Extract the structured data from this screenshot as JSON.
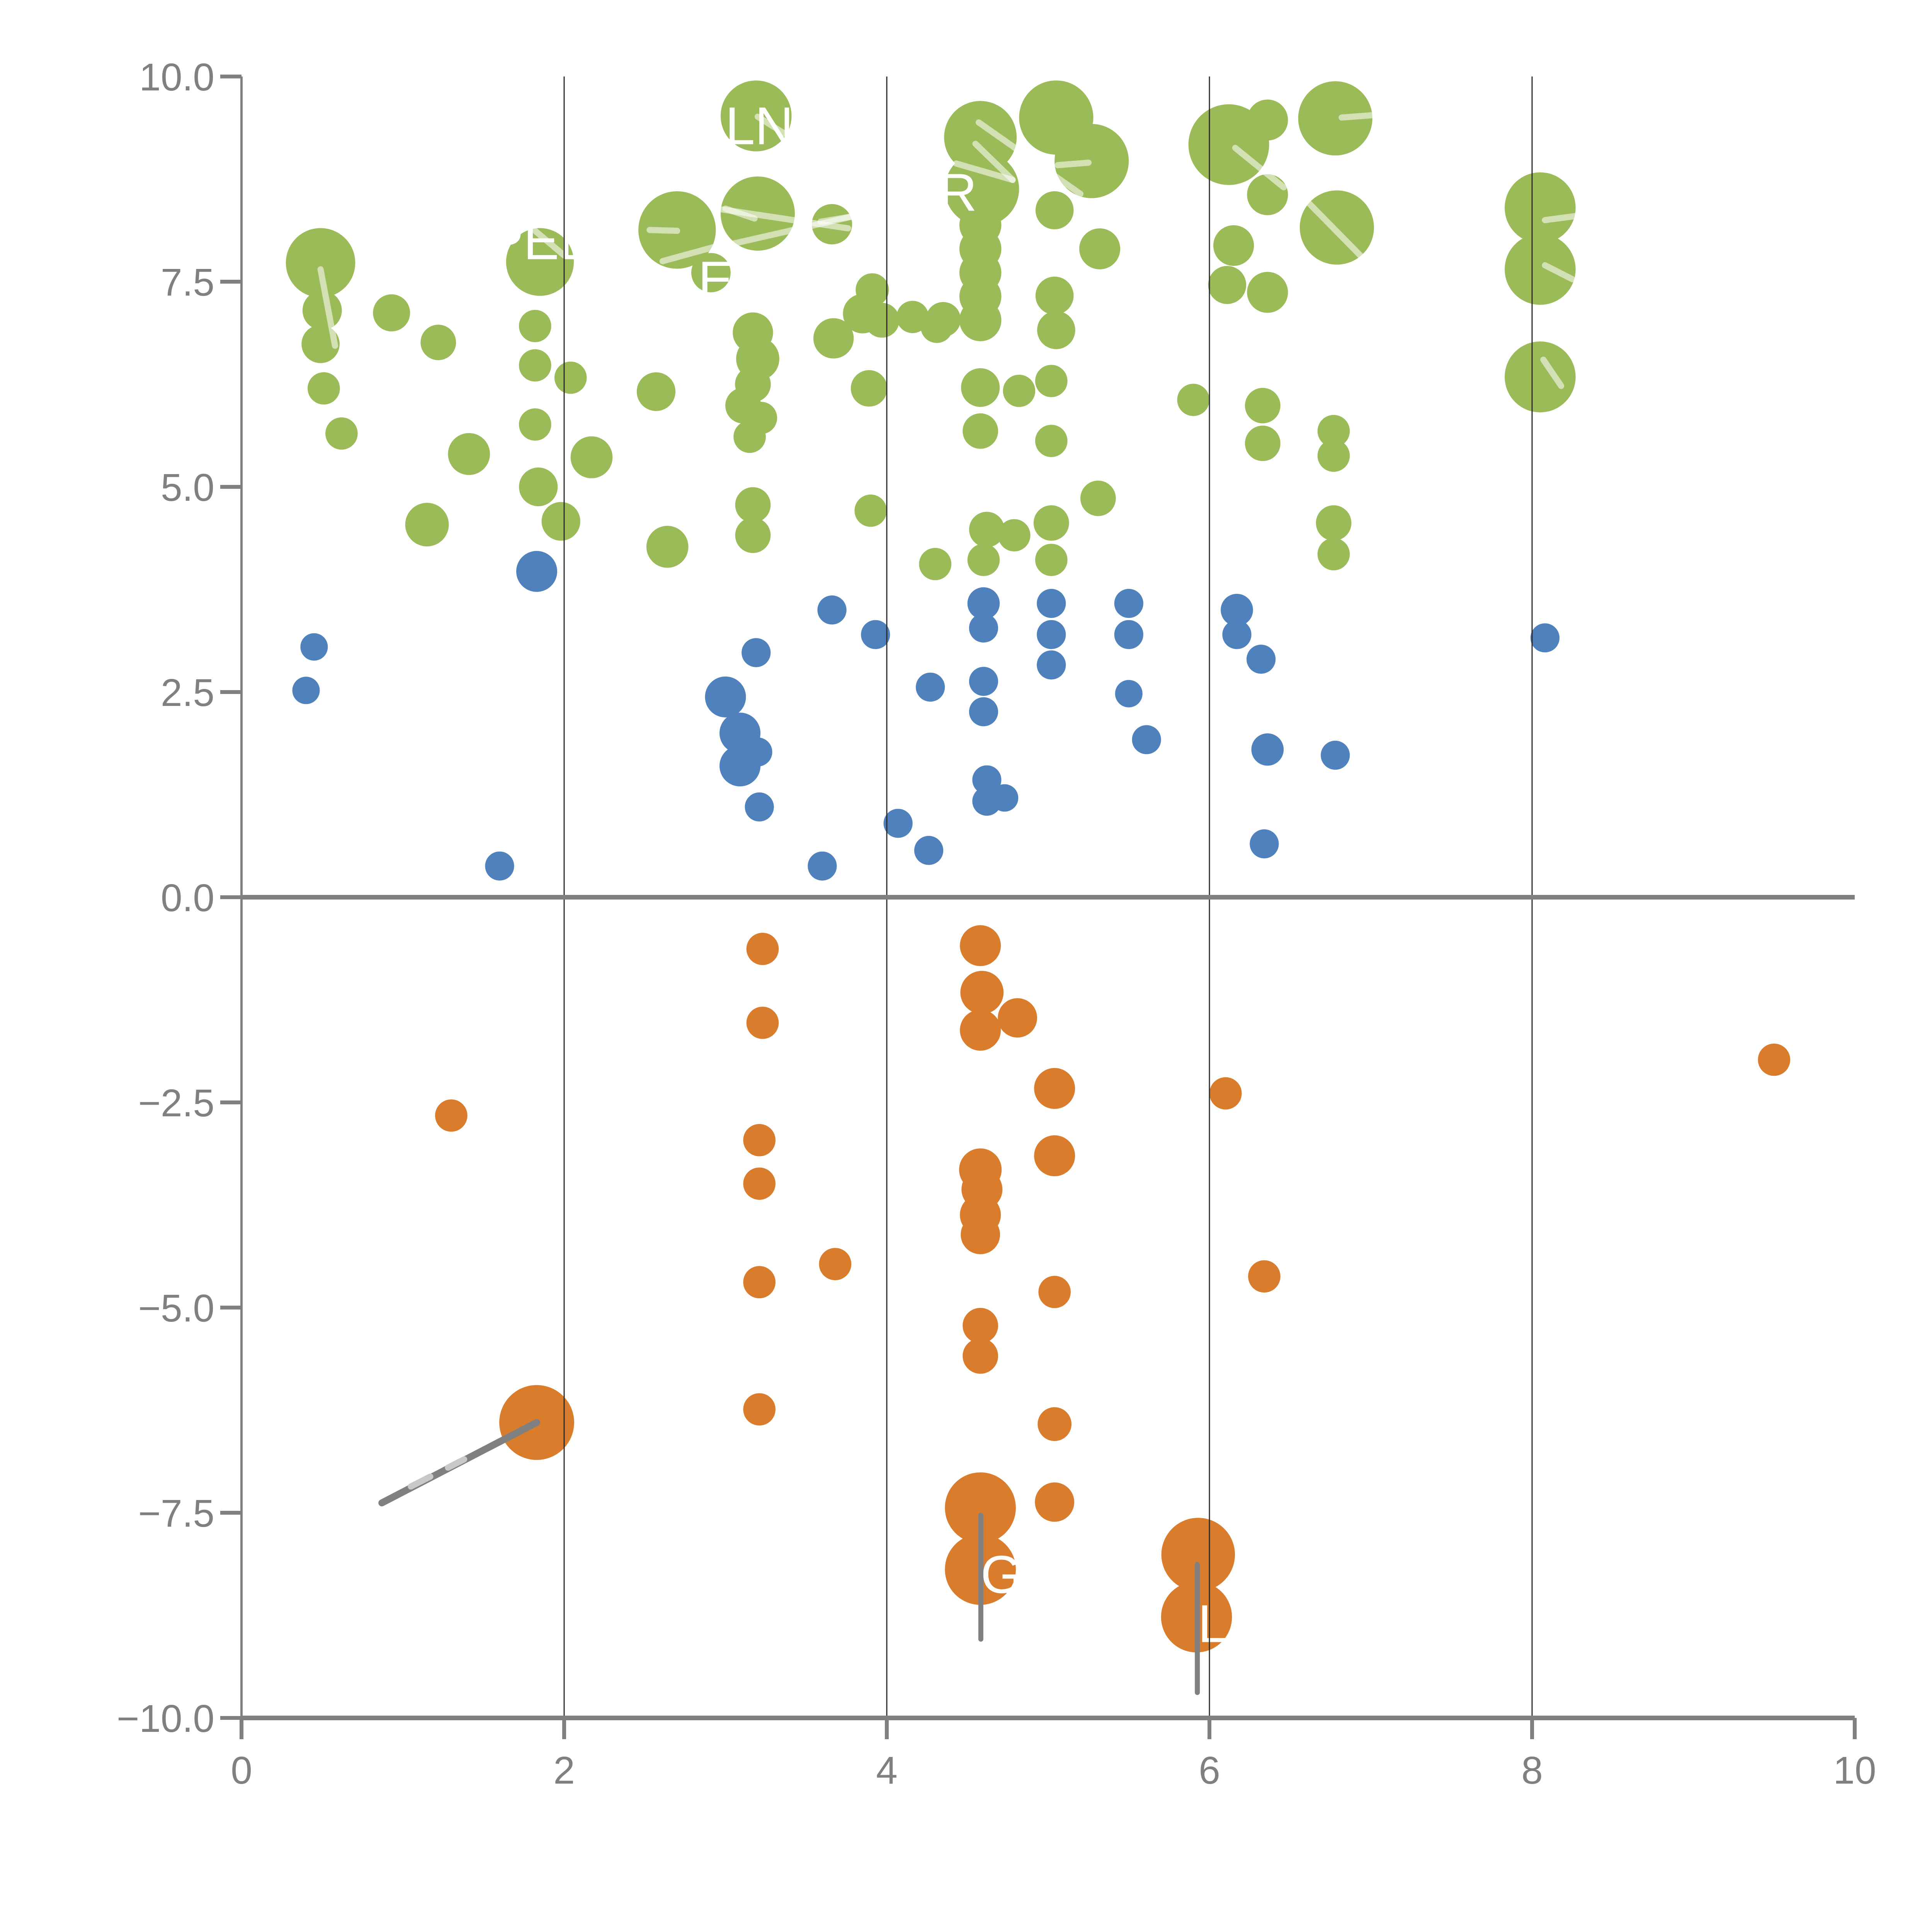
{
  "chart_data": {
    "type": "scatter",
    "title": "",
    "xlabel": "",
    "ylabel": "",
    "xlim": [
      0,
      10
    ],
    "ylim": [
      -10,
      10
    ],
    "grid_x_values": [
      2,
      4,
      6,
      8
    ],
    "zero_line_y": 0,
    "x_ticks": {
      "values": [
        0,
        2,
        4,
        6,
        8,
        10
      ],
      "labels": [
        "0",
        "2",
        "4",
        "6",
        "8",
        "10"
      ]
    },
    "y_ticks": {
      "values": [
        10,
        7.5,
        5,
        2.5,
        0,
        -2.5,
        -5,
        -7.5,
        -10
      ],
      "labels": [
        "10.0",
        "7.5",
        "5.0",
        "2.5",
        "0.0",
        "−2.5",
        "−5.0",
        "−7.5",
        "−10.0"
      ]
    },
    "colors": {
      "green": "#9BBB59",
      "blue": "#4F81BD",
      "orange": "#D97D2D",
      "axis": "#808080",
      "gridline": "#2b2b2b",
      "bubble_label": "#FFFFFF",
      "tick_label": "#808080",
      "leader_light": "rgba(255,255,255,0.55)",
      "leader_gray": "#808080",
      "leader_gray_light": "#C8C8C8"
    },
    "series": [
      {
        "name": "green",
        "color": "#9BBB59",
        "points": [
          [
            3.19,
            9.52,
            0.22
          ],
          [
            4.58,
            9.26,
            0.225
          ],
          [
            4.59,
            8.63,
            0.23
          ],
          [
            5.05,
            9.5,
            0.23
          ],
          [
            5.27,
            8.97,
            0.23
          ],
          [
            6.12,
            9.17,
            0.25
          ],
          [
            6.36,
            9.47,
            0.127
          ],
          [
            6.78,
            9.49,
            0.23
          ],
          [
            6.79,
            8.16,
            0.23
          ],
          [
            8.05,
            8.4,
            0.22
          ],
          [
            8.05,
            7.65,
            0.22
          ],
          [
            8.05,
            6.34,
            0.22
          ],
          [
            2.7,
            8.13,
            0.24
          ],
          [
            3.2,
            8.33,
            0.23
          ],
          [
            0.49,
            7.73,
            0.215
          ],
          [
            1.85,
            7.74,
            0.21
          ],
          [
            3.66,
            8.2,
            0.125
          ],
          [
            6.36,
            8.56,
            0.127
          ],
          [
            2.91,
            7.61,
            0.122
          ],
          [
            5.04,
            8.37,
            0.118
          ],
          [
            5.32,
            7.9,
            0.127
          ],
          [
            6.15,
            7.94,
            0.126
          ],
          [
            6.11,
            7.46,
            0.118
          ],
          [
            6.36,
            7.37,
            0.127
          ],
          [
            5.04,
            7.33,
            0.118
          ],
          [
            5.05,
            6.91,
            0.118
          ],
          [
            4.35,
            7.04,
            0.108
          ],
          [
            0.5,
            7.15,
            0.122
          ],
          [
            0.49,
            6.74,
            0.118
          ],
          [
            0.93,
            7.12,
            0.115
          ],
          [
            1.22,
            6.76,
            0.11
          ],
          [
            1.82,
            6.96,
            0.1
          ],
          [
            3.91,
            7.4,
            0.103
          ],
          [
            3.85,
            7.11,
            0.122
          ],
          [
            3.97,
            7.03,
            0.108
          ],
          [
            4.16,
            7.07,
            0.1
          ],
          [
            4.31,
            6.95,
            0.1
          ],
          [
            4.58,
            8.19,
            0.13
          ],
          [
            4.58,
            7.9,
            0.13
          ],
          [
            4.58,
            7.61,
            0.13
          ],
          [
            4.58,
            7.32,
            0.13
          ],
          [
            4.58,
            7.03,
            0.13
          ],
          [
            3.17,
            6.88,
            0.125
          ],
          [
            3.2,
            6.56,
            0.134
          ],
          [
            3.17,
            6.25,
            0.111
          ],
          [
            3.11,
            5.99,
            0.111
          ],
          [
            3.67,
            6.81,
            0.125
          ],
          [
            3.89,
            6.2,
            0.113
          ],
          [
            2.57,
            6.16,
            0.12
          ],
          [
            0.51,
            6.2,
            0.1
          ],
          [
            1.82,
            6.48,
            0.1
          ],
          [
            2.04,
            6.33,
            0.1
          ],
          [
            4.58,
            6.21,
            0.12
          ],
          [
            4.82,
            6.17,
            0.1
          ],
          [
            5.02,
            6.29,
            0.1
          ],
          [
            5.9,
            6.06,
            0.1
          ],
          [
            6.33,
            5.99,
            0.11
          ],
          [
            6.33,
            5.53,
            0.11
          ],
          [
            0.62,
            5.65,
            0.1
          ],
          [
            1.41,
            5.4,
            0.13
          ],
          [
            1.15,
            4.54,
            0.135
          ],
          [
            1.84,
            5.0,
            0.12
          ],
          [
            1.98,
            4.58,
            0.12
          ],
          [
            2.17,
            5.36,
            0.13
          ],
          [
            2.64,
            4.27,
            0.13
          ],
          [
            1.82,
            5.76,
            0.1
          ],
          [
            3.15,
            5.61,
            0.1
          ],
          [
            4.58,
            5.68,
            0.11
          ],
          [
            5.02,
            5.56,
            0.1
          ],
          [
            6.77,
            5.68,
            0.1
          ],
          [
            6.77,
            5.38,
            0.1
          ],
          [
            3.22,
            5.84,
            0.1
          ],
          [
            3.17,
            4.78,
            0.11
          ],
          [
            3.17,
            4.41,
            0.11
          ],
          [
            3.9,
            4.71,
            0.1
          ],
          [
            5.02,
            4.56,
            0.11
          ],
          [
            4.62,
            4.48,
            0.11
          ],
          [
            4.79,
            4.41,
            0.1
          ],
          [
            6.77,
            4.56,
            0.11
          ],
          [
            6.77,
            4.18,
            0.1
          ],
          [
            4.3,
            4.06,
            0.1
          ],
          [
            4.6,
            4.11,
            0.1
          ],
          [
            5.31,
            4.86,
            0.11
          ],
          [
            5.02,
            4.11,
            0.1
          ]
        ]
      },
      {
        "name": "blue",
        "color": "#4F81BD",
        "points": [
          [
            1.83,
            3.97,
            0.127
          ],
          [
            0.45,
            3.05,
            0.085
          ],
          [
            0.4,
            2.52,
            0.085
          ],
          [
            3.66,
            3.5,
            0.09
          ],
          [
            3.93,
            3.2,
            0.09
          ],
          [
            4.6,
            3.58,
            0.1
          ],
          [
            4.6,
            3.28,
            0.09
          ],
          [
            5.02,
            3.58,
            0.09
          ],
          [
            5.02,
            3.2,
            0.09
          ],
          [
            5.5,
            3.58,
            0.09
          ],
          [
            5.5,
            3.2,
            0.09
          ],
          [
            6.17,
            3.5,
            0.1
          ],
          [
            6.17,
            3.2,
            0.09
          ],
          [
            6.32,
            2.9,
            0.09
          ],
          [
            8.08,
            3.16,
            0.09
          ],
          [
            3.19,
            2.98,
            0.09
          ],
          [
            3.0,
            2.44,
            0.127
          ],
          [
            4.27,
            2.56,
            0.09
          ],
          [
            4.6,
            2.63,
            0.09
          ],
          [
            5.02,
            2.83,
            0.09
          ],
          [
            5.5,
            2.48,
            0.085
          ],
          [
            3.09,
            2.0,
            0.127
          ],
          [
            3.2,
            1.77,
            0.09
          ],
          [
            3.09,
            1.6,
            0.127
          ],
          [
            4.6,
            2.26,
            0.09
          ],
          [
            5.61,
            1.92,
            0.09
          ],
          [
            6.36,
            1.8,
            0.1
          ],
          [
            6.78,
            1.73,
            0.09
          ],
          [
            3.21,
            1.1,
            0.09
          ],
          [
            4.62,
            1.43,
            0.09
          ],
          [
            4.62,
            1.17,
            0.09
          ],
          [
            4.73,
            1.21,
            0.085
          ],
          [
            4.07,
            0.9,
            0.09
          ],
          [
            4.26,
            0.57,
            0.09
          ],
          [
            3.6,
            0.38,
            0.09
          ],
          [
            1.6,
            0.38,
            0.09
          ],
          [
            6.34,
            0.65,
            0.09
          ]
        ]
      },
      {
        "name": "orange",
        "color": "#D97D2D",
        "points": [
          [
            4.58,
            -0.59,
            0.127
          ],
          [
            4.59,
            -1.16,
            0.134
          ],
          [
            4.58,
            -1.62,
            0.127
          ],
          [
            4.81,
            -1.47,
            0.122
          ],
          [
            3.23,
            -0.63,
            0.1
          ],
          [
            3.23,
            -1.53,
            0.1
          ],
          [
            9.5,
            -1.98,
            0.1
          ],
          [
            5.04,
            -2.33,
            0.127
          ],
          [
            6.1,
            -2.39,
            0.1
          ],
          [
            1.3,
            -2.66,
            0.1
          ],
          [
            3.21,
            -2.96,
            0.1
          ],
          [
            5.04,
            -3.15,
            0.127
          ],
          [
            4.58,
            -3.32,
            0.132
          ],
          [
            4.59,
            -3.56,
            0.127
          ],
          [
            4.58,
            -3.87,
            0.127
          ],
          [
            4.58,
            -4.11,
            0.122
          ],
          [
            3.21,
            -3.49,
            0.1
          ],
          [
            3.68,
            -4.47,
            0.1
          ],
          [
            3.21,
            -4.69,
            0.1
          ],
          [
            6.34,
            -4.62,
            0.1
          ],
          [
            5.04,
            -4.81,
            0.1
          ],
          [
            4.58,
            -5.22,
            0.11
          ],
          [
            4.58,
            -5.59,
            0.11
          ],
          [
            3.21,
            -6.24,
            0.1
          ],
          [
            1.83,
            -6.4,
            0.232
          ],
          [
            5.04,
            -6.42,
            0.105
          ],
          [
            5.04,
            -7.37,
            0.122
          ],
          [
            4.58,
            -7.44,
            0.22
          ],
          [
            4.58,
            -8.19,
            0.22
          ],
          [
            5.93,
            -8.01,
            0.228
          ],
          [
            5.92,
            -8.77,
            0.22
          ]
        ]
      }
    ],
    "bubble_labels": [
      {
        "text": "LN",
        "x": 3.21,
        "y": 9.41
      },
      {
        "text": "PEL",
        "x": 1.84,
        "y": 8.01
      },
      {
        "text": "R",
        "x": 4.44,
        "y": 8.6
      },
      {
        "text": "E",
        "x": 2.94,
        "y": 7.53
      },
      {
        "text": "G",
        "x": 4.71,
        "y": -8.24
      },
      {
        "text": "L",
        "x": 6.02,
        "y": -8.84
      }
    ],
    "leader_lines_light": [
      [
        3.2,
        9.51,
        3.41,
        9.25
      ],
      [
        1.79,
        8.17,
        2.0,
        7.82
      ],
      [
        4.55,
        9.18,
        4.78,
        8.74
      ],
      [
        4.43,
        8.94,
        4.78,
        8.74
      ],
      [
        4.57,
        9.44,
        5.2,
        8.57
      ],
      [
        5.06,
        8.92,
        5.25,
        8.95
      ],
      [
        6.82,
        9.5,
        7.02,
        9.53
      ],
      [
        6.62,
        8.45,
        6.96,
        7.77
      ],
      [
        8.08,
        8.25,
        8.27,
        8.3
      ],
      [
        8.08,
        7.7,
        8.25,
        7.53
      ],
      [
        8.07,
        6.55,
        8.18,
        6.23
      ],
      [
        6.16,
        9.13,
        6.46,
        8.65
      ],
      [
        0.49,
        7.65,
        0.58,
        6.72
      ],
      [
        2.53,
        8.13,
        2.7,
        8.12
      ],
      [
        2.61,
        7.75,
        2.98,
        7.95
      ],
      [
        3.0,
        8.39,
        3.18,
        8.27
      ],
      [
        3.04,
        7.96,
        3.8,
        8.3
      ],
      [
        2.98,
        8.38,
        3.76,
        8.15
      ],
      [
        3.59,
        8.23,
        4.01,
        8.37
      ]
    ],
    "leader_lines_gray": [
      {
        "pts": [
          1.83,
          -6.4,
          0.87,
          -7.38
        ],
        "width": 18
      },
      {
        "pts": [
          4.583,
          -7.53,
          4.583,
          -9.04
        ],
        "width": 13
      },
      {
        "pts": [
          5.925,
          -8.13,
          5.925,
          -9.69
        ],
        "width": 13
      }
    ],
    "leader_lines_gray_light": [
      [
        1.05,
        -7.18,
        1.17,
        -7.06
      ],
      [
        1.28,
        -6.95,
        1.38,
        -6.85
      ]
    ]
  }
}
